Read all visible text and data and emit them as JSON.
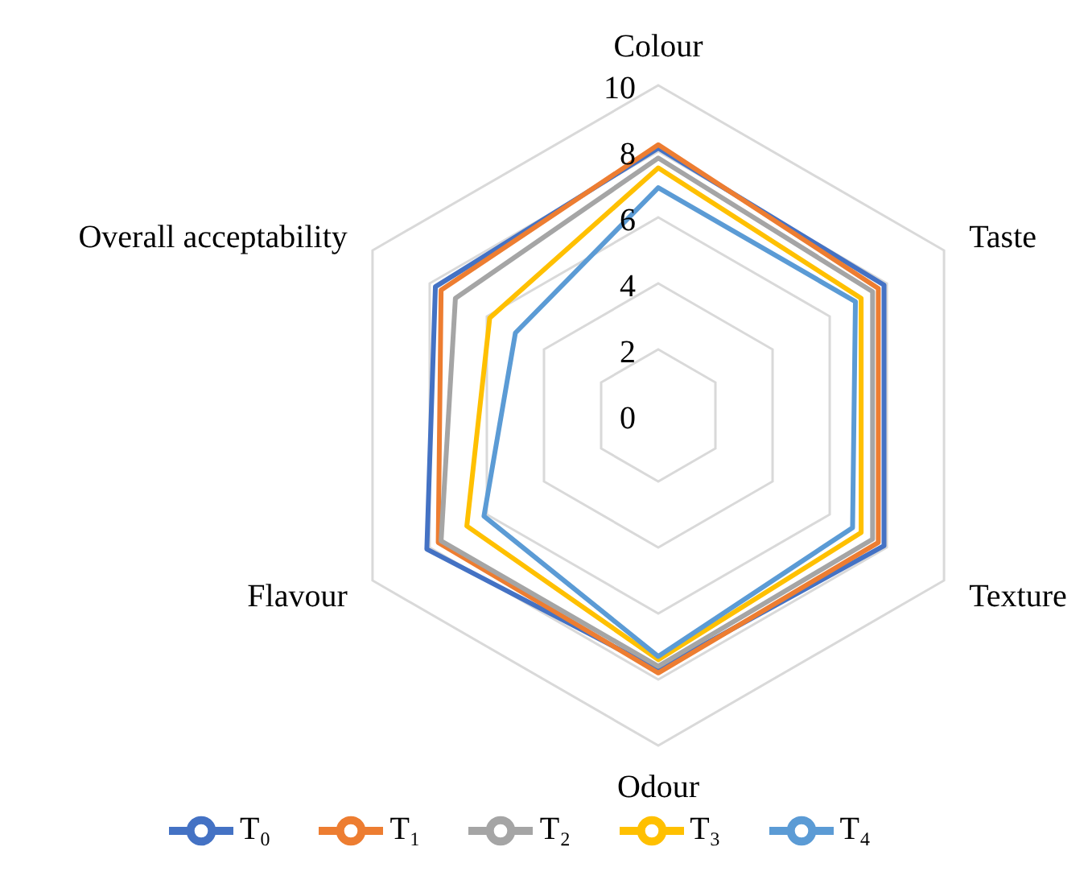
{
  "chart_data": {
    "type": "radar",
    "categories": [
      "Colour",
      "Taste",
      "Texture",
      "Odour",
      "Flavour",
      "Overall acceptability"
    ],
    "ylim": [
      0,
      10
    ],
    "yticks": [
      0,
      2,
      4,
      6,
      8,
      10
    ],
    "grid": true,
    "legend": "bottom",
    "marker": "none",
    "series": [
      {
        "name": "T₀",
        "color": "#4472c4",
        "values": [
          8.1,
          7.9,
          7.9,
          7.7,
          8.1,
          7.8
        ]
      },
      {
        "name": "T₁",
        "color": "#ed7d31",
        "values": [
          8.2,
          7.7,
          7.7,
          7.8,
          7.7,
          7.6
        ]
      },
      {
        "name": "T₂",
        "color": "#a5a5a5",
        "values": [
          7.8,
          7.5,
          7.5,
          7.6,
          7.6,
          7.1
        ]
      },
      {
        "name": "T₃",
        "color": "#ffc000",
        "values": [
          7.5,
          7.1,
          7.1,
          7.4,
          6.7,
          5.9
        ]
      },
      {
        "name": "T₄",
        "color": "#5b9bd5",
        "values": [
          6.9,
          6.9,
          6.8,
          7.3,
          6.1,
          5.0
        ]
      }
    ]
  }
}
